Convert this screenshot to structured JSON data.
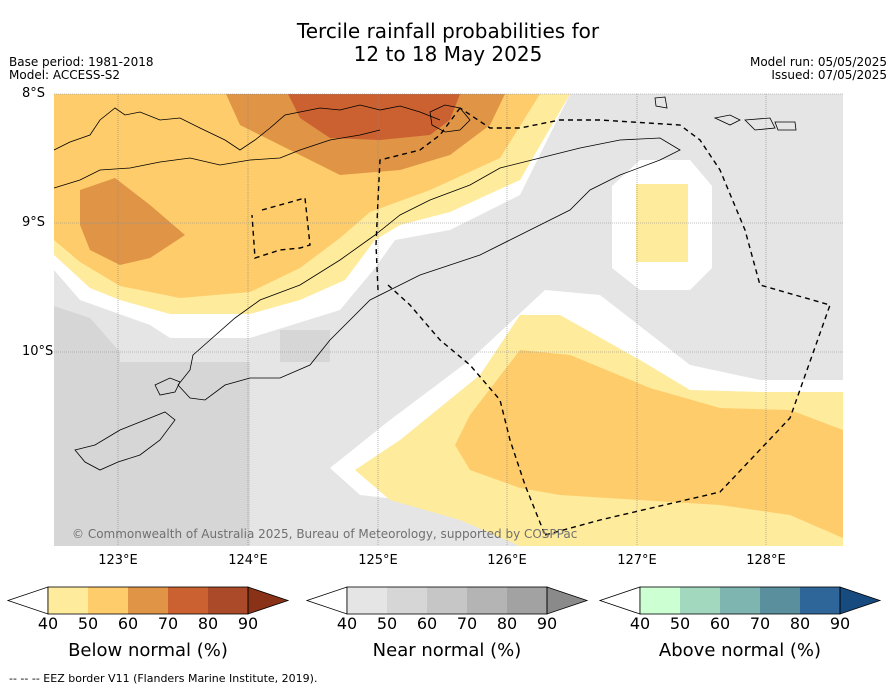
{
  "title": {
    "line1": "Tercile rainfall probabilities for",
    "line2": "12 to 18 May 2025"
  },
  "meta_left": {
    "base_period": "Base period: 1981-2018",
    "model": "Model: ACCESS-S2"
  },
  "meta_right": {
    "model_run": "Model run: 05/05/2025",
    "issued": "Issued: 07/05/2025"
  },
  "map": {
    "lat_labels": [
      "8°S",
      "9°S",
      "10°S"
    ],
    "lon_labels": [
      "123°E",
      "124°E",
      "125°E",
      "126°E",
      "127°E",
      "128°E"
    ],
    "credit": "© Commonwealth of Australia 2025, Bureau of Meteorology, supported by COSPPac"
  },
  "colorbars": [
    {
      "name": "below",
      "label": "Below normal (%)",
      "ticks": [
        "40",
        "50",
        "60",
        "70",
        "80",
        "90"
      ],
      "colors": [
        "#ffffff",
        "#feeb9c",
        "#fecc6a",
        "#e09446",
        "#cb6130",
        "#ab4a29",
        "#8a3218"
      ]
    },
    {
      "name": "near",
      "label": "Near normal (%)",
      "ticks": [
        "40",
        "50",
        "60",
        "70",
        "80",
        "90"
      ],
      "colors": [
        "#ffffff",
        "#e5e5e5",
        "#d6d6d6",
        "#c6c6c6",
        "#b4b4b4",
        "#a2a2a2",
        "#8a8a8a"
      ]
    },
    {
      "name": "above",
      "label": "Above normal (%)",
      "ticks": [
        "40",
        "50",
        "60",
        "70",
        "80",
        "90"
      ],
      "colors": [
        "#ffffff",
        "#ccffd2",
        "#a2d9be",
        "#7fb5b0",
        "#5a909e",
        "#2f6699",
        "#174a7e"
      ]
    }
  ],
  "footer": "--  --  -- EEZ border V11 (Flanders Marine Institute, 2019)."
}
